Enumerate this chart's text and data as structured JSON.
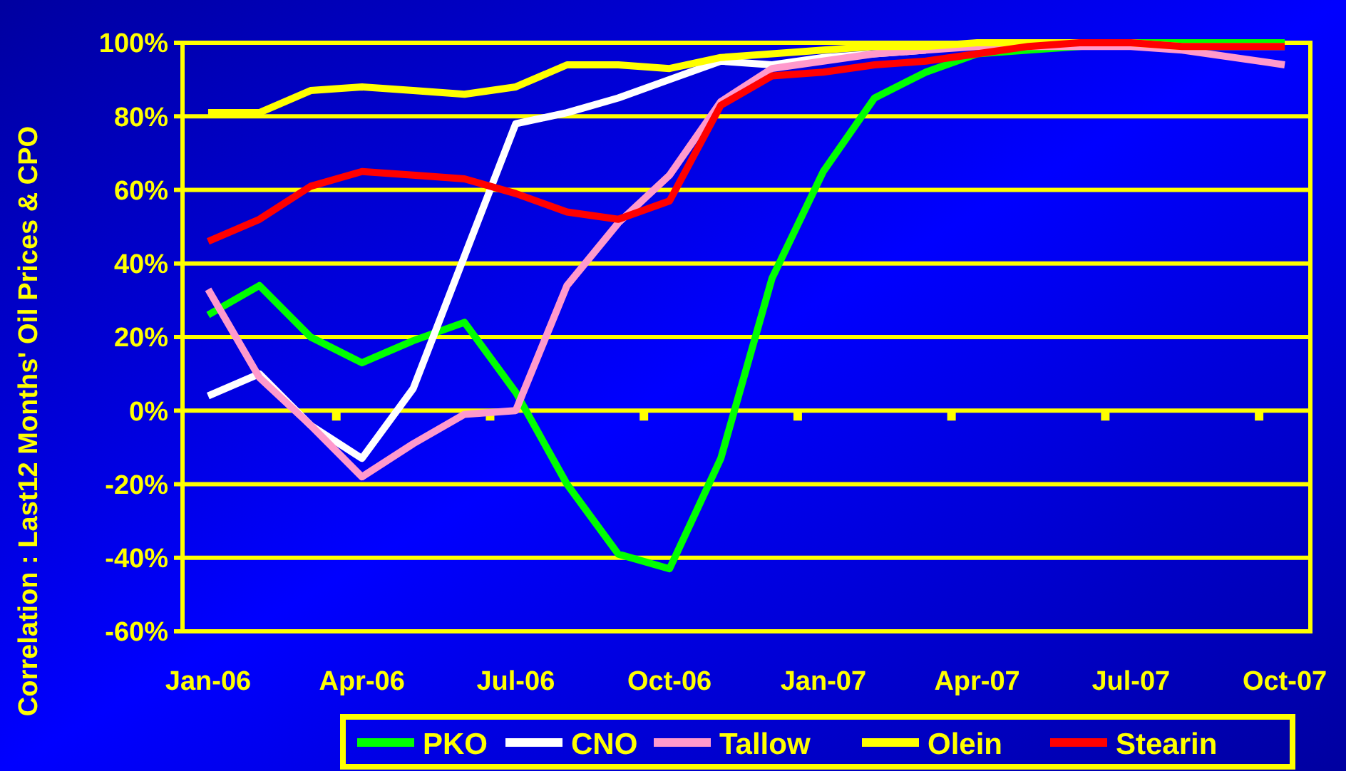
{
  "chart_data": {
    "type": "line",
    "ylabel": "Correlation : Last12 Months' Oil Prices & CPO",
    "categories": [
      "Jan-06",
      null,
      null,
      "Apr-06",
      null,
      null,
      "Jul-06",
      null,
      null,
      "Oct-06",
      null,
      null,
      "Jan-07",
      null,
      null,
      "Apr-07",
      null,
      null,
      "Jul-07",
      null,
      null,
      "Oct-07"
    ],
    "series": [
      {
        "name": "PKO",
        "color": "#00ff00",
        "values": [
          26,
          34,
          20,
          13,
          19,
          24,
          5,
          -20,
          -39,
          -43,
          -13,
          36,
          65,
          85,
          92,
          97,
          98,
          99,
          100,
          100,
          100,
          100
        ]
      },
      {
        "name": "CNO",
        "color": "#ffffff",
        "values": [
          4,
          10,
          -4,
          -13,
          6,
          42,
          78,
          81,
          85,
          90,
          95,
          94,
          96,
          97,
          98,
          null,
          null,
          null,
          null,
          null,
          null,
          null
        ]
      },
      {
        "name": "Tallow",
        "color": "#ff99cc",
        "values": [
          33,
          9,
          -4,
          -18,
          -9,
          -1,
          0,
          34,
          51,
          64,
          84,
          93,
          95,
          97,
          98,
          99,
          99,
          99,
          99,
          98,
          96,
          94
        ]
      },
      {
        "name": "Olein",
        "color": "#ffff00",
        "values": [
          81,
          81,
          87,
          88,
          87,
          86,
          88,
          94,
          94,
          93,
          96,
          97,
          98,
          99,
          99,
          100,
          100,
          100,
          100,
          99,
          99,
          99
        ]
      },
      {
        "name": "Stearin",
        "color": "#ff0000",
        "values": [
          46,
          52,
          61,
          65,
          64,
          63,
          59,
          54,
          52,
          57,
          83,
          91,
          92,
          94,
          95,
          97,
          99,
          100,
          100,
          99,
          99,
          99
        ]
      }
    ],
    "ylim": [
      -60,
      100
    ],
    "yticks": [
      {
        "value": -60,
        "label": "-60%"
      },
      {
        "value": -40,
        "label": "-40%"
      },
      {
        "value": -20,
        "label": "-20%"
      },
      {
        "value": 0,
        "label": "0%"
      },
      {
        "value": 20,
        "label": "20%"
      },
      {
        "value": 40,
        "label": "40%"
      },
      {
        "value": 60,
        "label": "60%"
      },
      {
        "value": 80,
        "label": "80%"
      },
      {
        "value": 100,
        "label": "100%"
      }
    ],
    "grid": "y",
    "legend": "bottom"
  }
}
